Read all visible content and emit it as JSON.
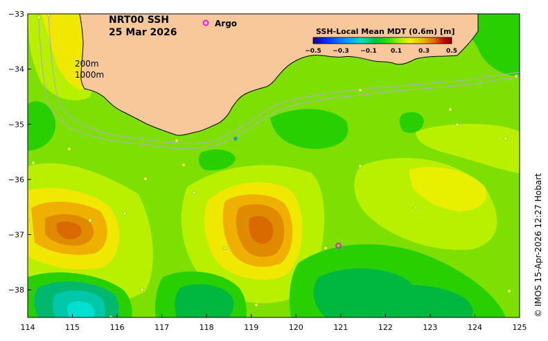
{
  "map": {
    "title_line1": "NRT00 SSH",
    "title_line2": "25 Mar 2026",
    "isobath_labels": [
      "200m",
      "1000m"
    ],
    "argo_legend": "Argo",
    "credit": "© IMOS 15-Apr-2026 12:27 Hobart",
    "colors": {
      "land": "#f9c89a",
      "base": "#7ee000",
      "argo": "#e020e0",
      "isobath": "#b0b0b0"
    },
    "x_axis": {
      "range": [
        114,
        125
      ],
      "ticks": [
        "114",
        "115",
        "116",
        "117",
        "118",
        "119",
        "120",
        "121",
        "122",
        "123",
        "124",
        "125"
      ]
    },
    "y_axis": {
      "range": [
        -38.5,
        -33
      ],
      "ticks": [
        "-33",
        "-34",
        "-35",
        "-36",
        "-37",
        "-38"
      ]
    },
    "colorbar": {
      "title": "SSH-Local Mean MDT (0.6m) [m]",
      "range": [
        -0.5,
        0.5
      ],
      "ticks": [
        "-0.5",
        "-0.3",
        "-0.1",
        "0.1",
        "0.3",
        "0.5"
      ],
      "colors": [
        "#1a0090",
        "#0030ff",
        "#00a0ff",
        "#00e0c0",
        "#00c040",
        "#40e000",
        "#a0f000",
        "#f0f000",
        "#f0b000",
        "#e06000",
        "#c00000",
        "#8a0000"
      ]
    },
    "argo_floats": [
      {
        "lon": 120.95,
        "lat": -37.2
      }
    ]
  }
}
